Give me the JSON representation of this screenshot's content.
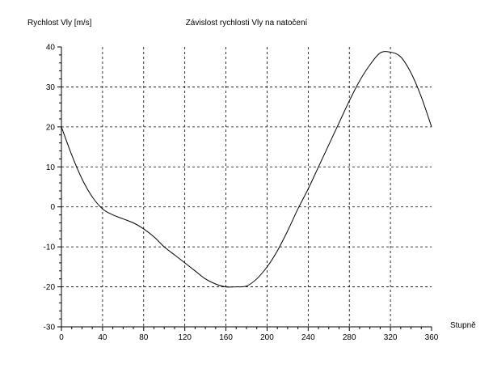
{
  "chart_data": {
    "type": "line",
    "title": "Závislost rychlosti Vly na natočení",
    "ylabel": "Rychlost Vly [m/s]",
    "xlabel": "Stupně",
    "xlim": [
      0,
      360
    ],
    "ylim": [
      -30,
      40
    ],
    "xticks": [
      0,
      40,
      80,
      120,
      160,
      200,
      240,
      280,
      320,
      360
    ],
    "yticks": [
      -30,
      -20,
      -10,
      0,
      10,
      20,
      30,
      40
    ],
    "grid": true,
    "series": [
      {
        "x": [
          0,
          10,
          20,
          30,
          40,
          50,
          60,
          70,
          80,
          90,
          100,
          110,
          120,
          130,
          140,
          150,
          160,
          170,
          180,
          190,
          200,
          210,
          220,
          230,
          240,
          250,
          260,
          270,
          280,
          290,
          300,
          310,
          320,
          330,
          340,
          350,
          360
        ],
        "y": [
          20,
          13,
          7,
          2.5,
          -0.5,
          -2,
          -3,
          -4,
          -5.5,
          -7.5,
          -10,
          -12,
          -14,
          -16,
          -18,
          -19.3,
          -20,
          -20,
          -19.8,
          -18,
          -15,
          -11,
          -6,
          -0.5,
          4.5,
          10,
          15.5,
          21,
          26.5,
          31.5,
          35.5,
          38.5,
          38.7,
          37.5,
          33.5,
          27.5,
          20
        ],
        "color": "#000000"
      }
    ]
  }
}
